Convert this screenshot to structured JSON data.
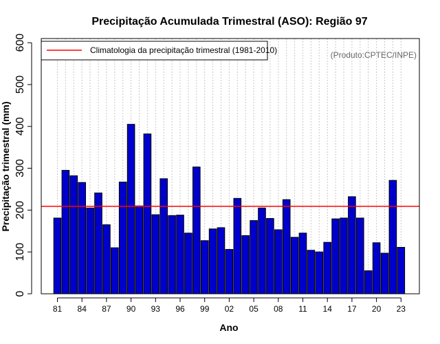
{
  "chart_data": {
    "type": "bar",
    "title": "Precipitação Acumulada Trimestral (ASO): Região 97",
    "xlabel": "Ano",
    "ylabel": "Precipitação trimestral (mm)",
    "ylim": [
      0,
      600
    ],
    "yticks": [
      0,
      100,
      200,
      300,
      400,
      500,
      600
    ],
    "grid": "vertical dotted",
    "credit": "(Produto:CPTEC/INPE)",
    "colors": {
      "bar": "#0000cc",
      "bar_edge": "#000000",
      "climatology": "#ff0000",
      "grid": "#c8c8c8"
    },
    "categories": [
      "1981",
      "1982",
      "1983",
      "1984",
      "1985",
      "1986",
      "1987",
      "1988",
      "1989",
      "1990",
      "1991",
      "1992",
      "1993",
      "1994",
      "1995",
      "1996",
      "1997",
      "1998",
      "1999",
      "2000",
      "2001",
      "2002",
      "2003",
      "2004",
      "2005",
      "2006",
      "2007",
      "2008",
      "2009",
      "2010",
      "2011",
      "2012",
      "2013",
      "2014",
      "2015",
      "2016",
      "2017",
      "2018",
      "2019",
      "2020",
      "2021",
      "2022",
      "2023"
    ],
    "xtick_labels": [
      "81",
      "84",
      "87",
      "90",
      "93",
      "96",
      "99",
      "02",
      "05",
      "08",
      "11",
      "14",
      "17",
      "20",
      "23"
    ],
    "xtick_indices": [
      0,
      3,
      6,
      9,
      12,
      15,
      18,
      21,
      24,
      27,
      30,
      33,
      36,
      39,
      42
    ],
    "values": [
      181,
      295,
      282,
      266,
      205,
      241,
      165,
      110,
      267,
      405,
      210,
      382,
      189,
      275,
      187,
      188,
      145,
      303,
      127,
      155,
      158,
      106,
      228,
      139,
      175,
      205,
      180,
      153,
      225,
      135,
      145,
      104,
      100,
      123,
      179,
      181,
      232,
      181,
      55,
      122,
      97,
      271,
      111
    ],
    "climatology": {
      "label": "Climatologia da precipitação trimestral (1981-2010)",
      "value": 209
    },
    "legend_position": "top-left"
  }
}
